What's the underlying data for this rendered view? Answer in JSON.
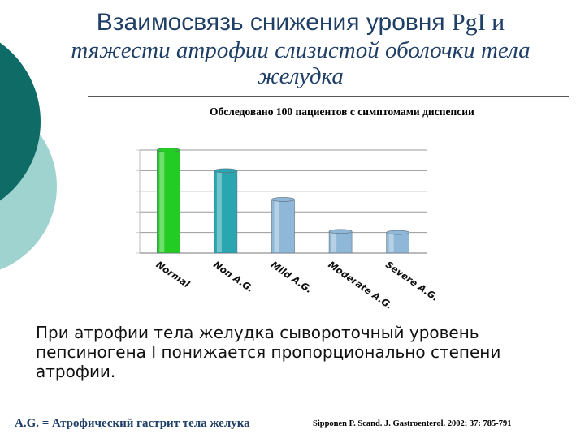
{
  "title": {
    "line1_sans": "Взаимосвязь снижения уровня ",
    "line1_serif": "PgI и",
    "line2": "тяжести атрофии слизистой оболочки тела",
    "line3": "желудка"
  },
  "subtitle": "Обследовано 100 пациентов с симптомами диспепсии",
  "chart_data": {
    "type": "bar",
    "categories": [
      "Normal",
      "Non A.G.",
      "Mild A.G.",
      "Moderate A.G.",
      "Severe A.G."
    ],
    "values": [
      100,
      80,
      52,
      21,
      20
    ],
    "colors": [
      "#22cc22",
      "#2aa6b0",
      "#8fb8d8",
      "#8fb8d8",
      "#8fb8d8"
    ],
    "title": "",
    "xlabel": "",
    "ylabel": "",
    "ylim": [
      0,
      100
    ],
    "grid": true
  },
  "body_text": "При атрофии тела желудка сывороточный уровень пепсиногена I понижается пропорционально степени атрофии.",
  "footer": {
    "left": "A.G. = Атрофический гастрит тела желука",
    "right": "Sipponen P. Scand. J. Gastroenterol. 2002; 37: 785-791"
  }
}
